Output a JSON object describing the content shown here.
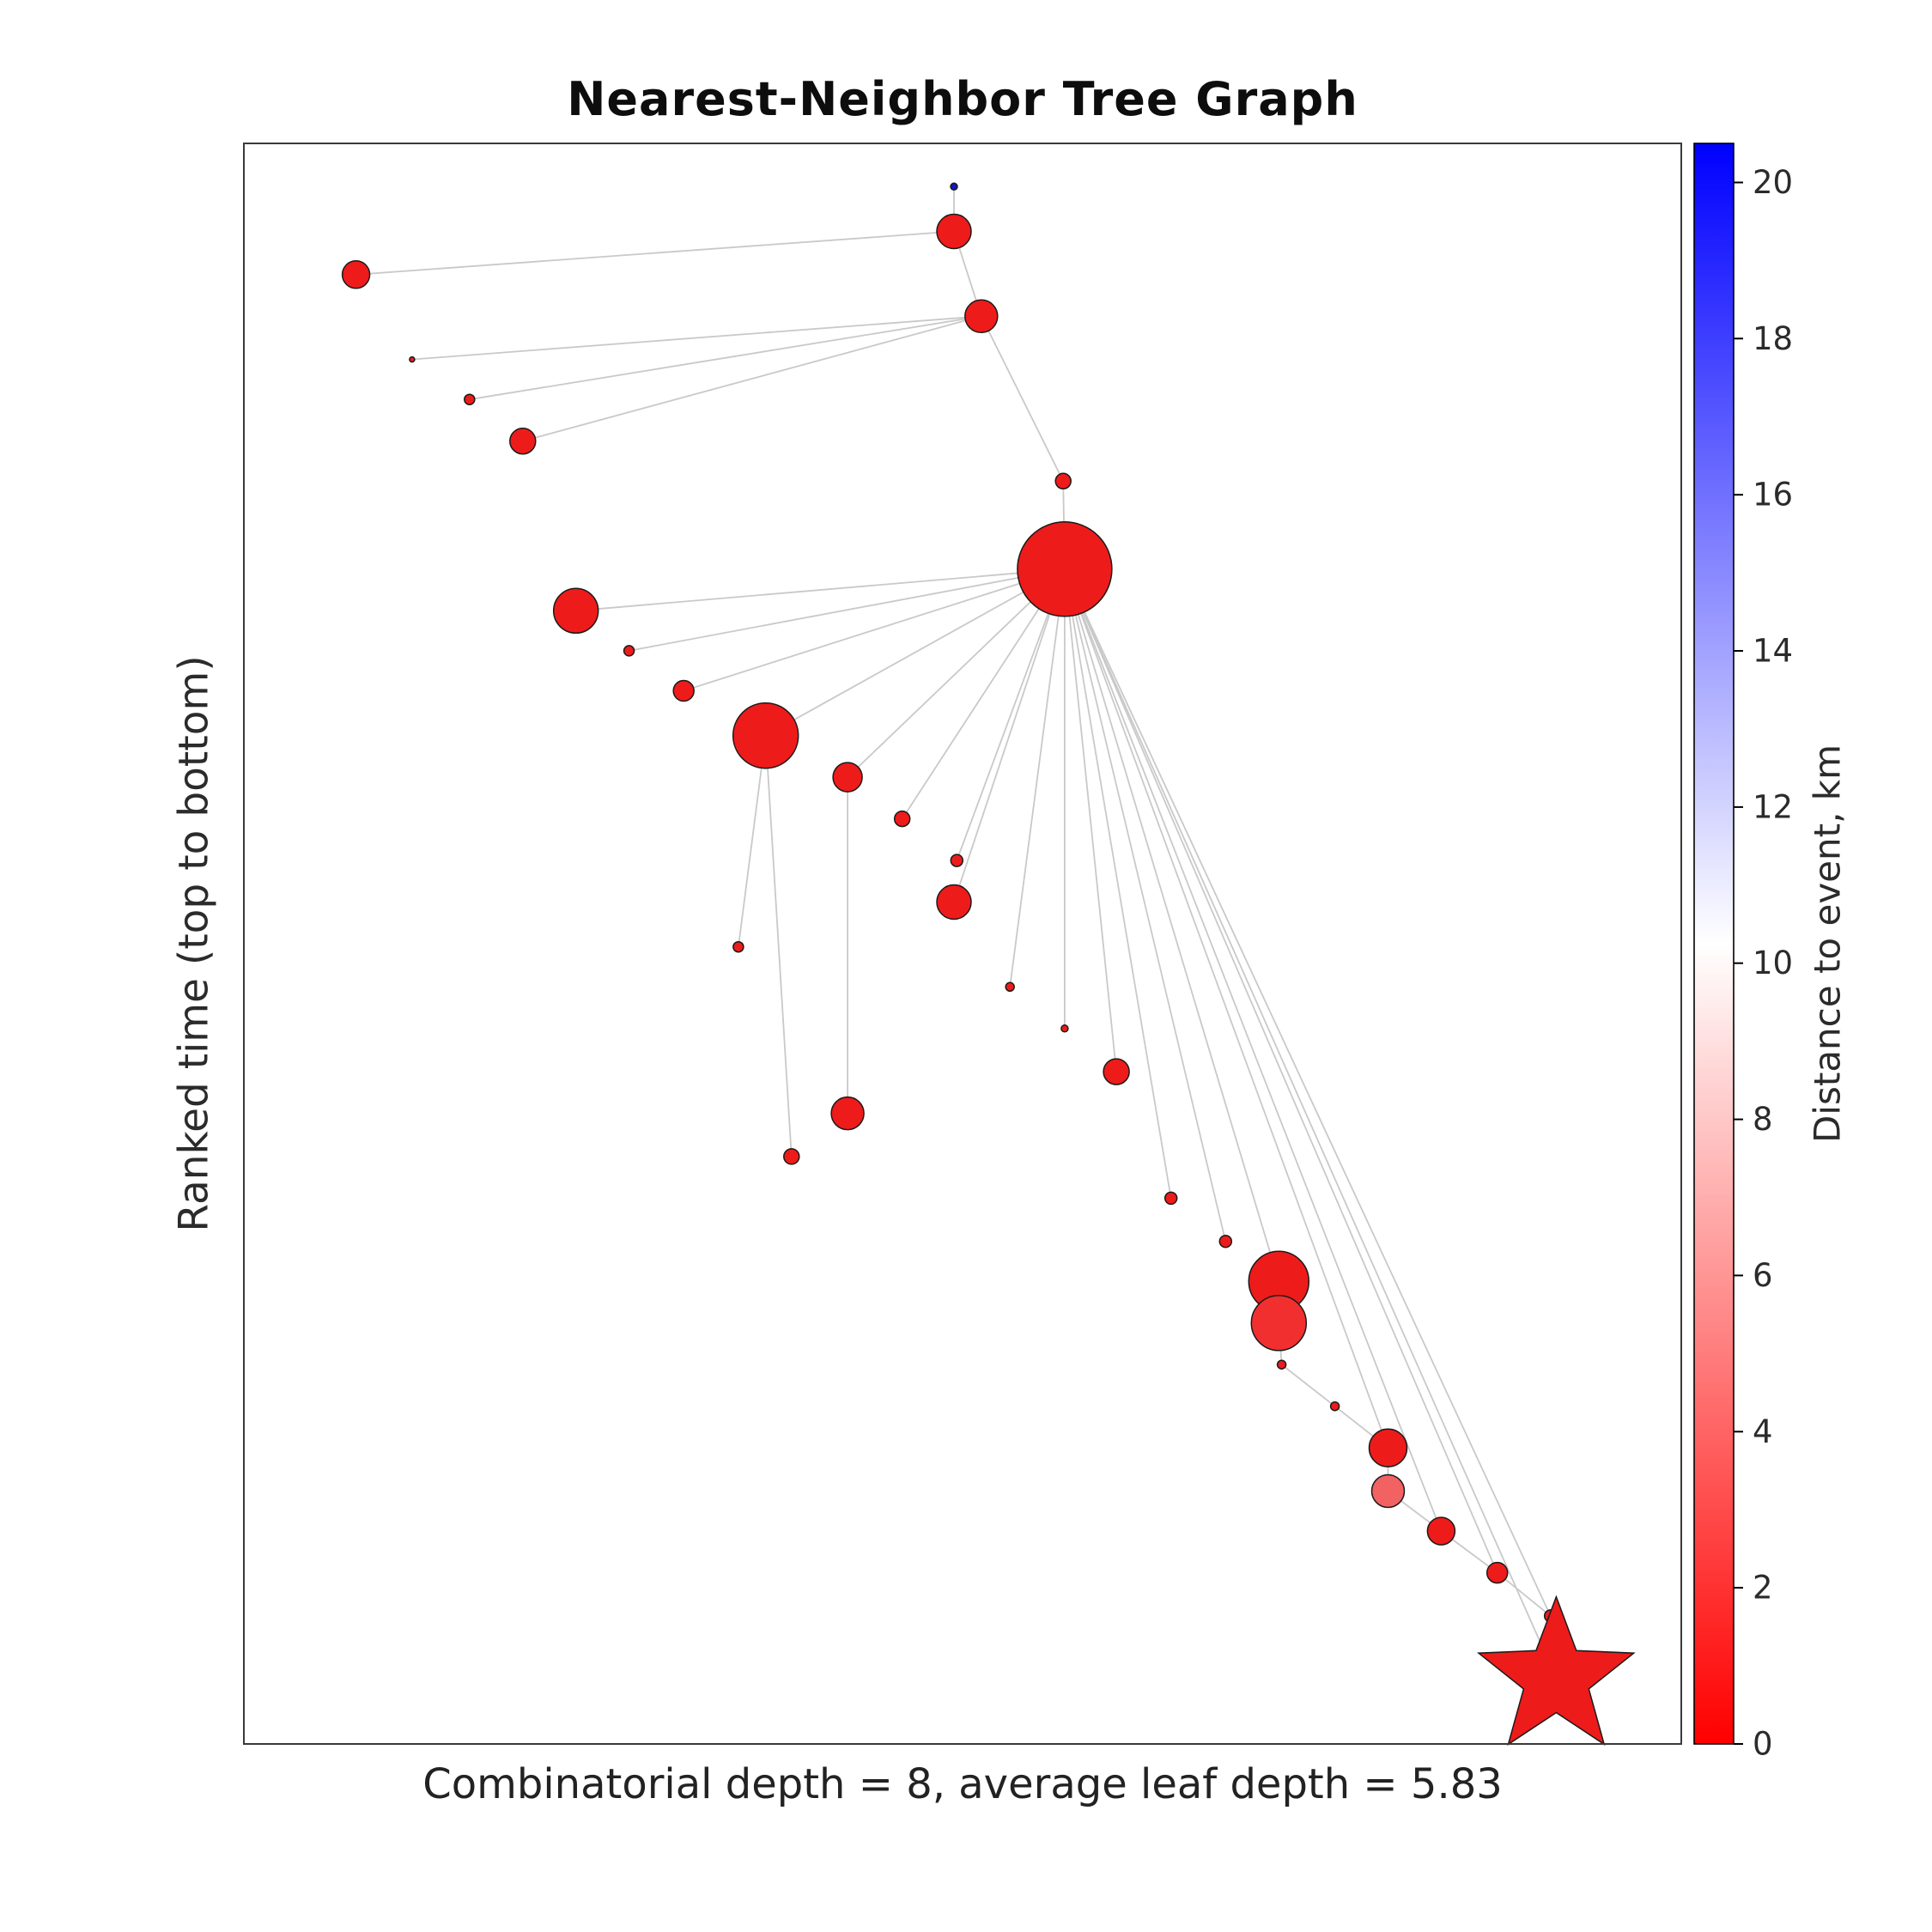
{
  "title": "Nearest-Neighbor Tree Graph",
  "ylabel": "Ranked time (top to bottom)",
  "caption": "Combinatorial depth = 8, average leaf depth = 5.83",
  "colorbar": {
    "label": "Distance to event, km",
    "ticks": [
      0,
      2,
      4,
      6,
      8,
      10,
      12,
      14,
      16,
      18,
      20
    ],
    "vmin": 0,
    "vmax": 20.5,
    "color_stops": [
      {
        "v": 0,
        "color": "#ff0000"
      },
      {
        "v": 10.25,
        "color": "#ffffff"
      },
      {
        "v": 20.5,
        "color": "#0000ff"
      }
    ]
  },
  "chart_data": {
    "type": "scatter",
    "description": "Nearest-neighbor tree graph of seismic events: nodes ranked by time (top to bottom), node color encodes distance to event in km (red = 0, blue = 20), gray edges link each event to its nearest neighbor, star marks the target event",
    "stats": {
      "combinatorial_depth": 8,
      "average_leaf_depth": 5.83
    },
    "edge_color": "#c9c9c9",
    "node_stroke": "#1a1a1a",
    "nodes": [
      {
        "fx": 0.494,
        "fy": 0.027,
        "r": 4,
        "color": "#1515b8"
      },
      {
        "fx": 0.494,
        "fy": 0.055,
        "r": 20,
        "color": "#ee1b1b"
      },
      {
        "fx": 0.078,
        "fy": 0.082,
        "r": 16,
        "color": "#ee1b1b"
      },
      {
        "fx": 0.513,
        "fy": 0.108,
        "r": 19,
        "color": "#ee1b1b"
      },
      {
        "fx": 0.117,
        "fy": 0.135,
        "r": 3,
        "color": "#ee1b1b"
      },
      {
        "fx": 0.157,
        "fy": 0.16,
        "r": 6,
        "color": "#ee1b1b"
      },
      {
        "fx": 0.194,
        "fy": 0.186,
        "r": 15,
        "color": "#ee1b1b"
      },
      {
        "fx": 0.57,
        "fy": 0.211,
        "r": 9,
        "color": "#ee1b1b"
      },
      {
        "fx": 0.571,
        "fy": 0.266,
        "r": 55,
        "color": "#ee1b1b"
      },
      {
        "fx": 0.231,
        "fy": 0.292,
        "r": 26,
        "color": "#ee1b1b"
      },
      {
        "fx": 0.268,
        "fy": 0.317,
        "r": 6,
        "color": "#ee1b1b"
      },
      {
        "fx": 0.306,
        "fy": 0.342,
        "r": 12,
        "color": "#ee1b1b"
      },
      {
        "fx": 0.363,
        "fy": 0.37,
        "r": 38,
        "color": "#ee1b1b"
      },
      {
        "fx": 0.42,
        "fy": 0.396,
        "r": 17,
        "color": "#ee1b1b"
      },
      {
        "fx": 0.458,
        "fy": 0.422,
        "r": 9,
        "color": "#ee1b1b"
      },
      {
        "fx": 0.496,
        "fy": 0.448,
        "r": 7,
        "color": "#ee1b1b"
      },
      {
        "fx": 0.494,
        "fy": 0.474,
        "r": 20,
        "color": "#ee1b1b"
      },
      {
        "fx": 0.533,
        "fy": 0.527,
        "r": 5,
        "color": "#ee1b1b"
      },
      {
        "fx": 0.344,
        "fy": 0.502,
        "r": 6,
        "color": "#ee1b1b"
      },
      {
        "fx": 0.571,
        "fy": 0.553,
        "r": 4,
        "color": "#ee1b1b"
      },
      {
        "fx": 0.607,
        "fy": 0.58,
        "r": 15,
        "color": "#ee1b1b"
      },
      {
        "fx": 0.42,
        "fy": 0.606,
        "r": 19,
        "color": "#ee1b1b"
      },
      {
        "fx": 0.381,
        "fy": 0.633,
        "r": 9,
        "color": "#ee1b1b"
      },
      {
        "fx": 0.645,
        "fy": 0.659,
        "r": 7,
        "color": "#ee1b1b"
      },
      {
        "fx": 0.683,
        "fy": 0.686,
        "r": 7,
        "color": "#ee1b1b"
      },
      {
        "fx": 0.72,
        "fy": 0.711,
        "r": 35,
        "color": "#ee1b1b"
      },
      {
        "fx": 0.72,
        "fy": 0.737,
        "r": 32,
        "color": "#f22f2f"
      },
      {
        "fx": 0.722,
        "fy": 0.763,
        "r": 5,
        "color": "#ee1b1b"
      },
      {
        "fx": 0.759,
        "fy": 0.789,
        "r": 5,
        "color": "#ee1b1b"
      },
      {
        "fx": 0.796,
        "fy": 0.815,
        "r": 22,
        "color": "#ee1b1b"
      },
      {
        "fx": 0.796,
        "fy": 0.842,
        "r": 19,
        "color": "#f26262"
      },
      {
        "fx": 0.833,
        "fy": 0.867,
        "r": 16,
        "color": "#ee1b1b"
      },
      {
        "fx": 0.872,
        "fy": 0.893,
        "r": 12,
        "color": "#ee1b1b"
      },
      {
        "fx": 0.909,
        "fy": 0.92,
        "r": 7,
        "color": "#ee1b1b"
      },
      {
        "fx": 0.913,
        "fy": 0.959,
        "r": 95,
        "color": "#ee1b1b",
        "shape": "star"
      }
    ],
    "edges": [
      [
        0,
        1
      ],
      [
        1,
        2
      ],
      [
        3,
        1
      ],
      [
        3,
        4
      ],
      [
        3,
        5
      ],
      [
        3,
        6
      ],
      [
        7,
        3
      ],
      [
        8,
        7
      ],
      [
        8,
        9
      ],
      [
        8,
        10
      ],
      [
        8,
        11
      ],
      [
        8,
        12
      ],
      [
        8,
        13
      ],
      [
        8,
        14
      ],
      [
        8,
        15
      ],
      [
        8,
        16
      ],
      [
        8,
        17
      ],
      [
        8,
        19
      ],
      [
        8,
        20
      ],
      [
        8,
        23
      ],
      [
        8,
        24
      ],
      [
        8,
        25
      ],
      [
        8,
        29
      ],
      [
        8,
        31
      ],
      [
        8,
        32
      ],
      [
        8,
        33
      ],
      [
        8,
        34
      ],
      [
        12,
        18
      ],
      [
        12,
        22
      ],
      [
        13,
        21
      ],
      [
        25,
        26
      ],
      [
        26,
        27
      ],
      [
        27,
        28
      ],
      [
        28,
        29
      ],
      [
        29,
        30
      ],
      [
        30,
        31
      ],
      [
        31,
        32
      ],
      [
        32,
        33
      ],
      [
        33,
        34
      ]
    ]
  }
}
